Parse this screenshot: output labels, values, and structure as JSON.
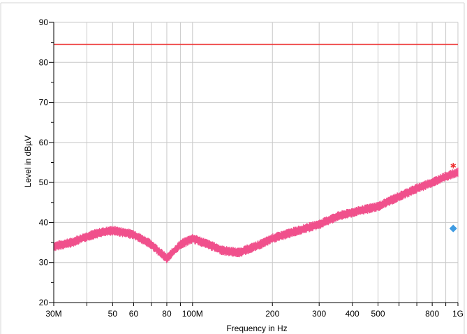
{
  "chart_data": {
    "type": "line",
    "xlabel": "Frequency in Hz",
    "ylabel": "Level in dBµV",
    "x_scale": "log",
    "xlim": [
      30000000,
      1000000000
    ],
    "ylim": [
      20,
      90
    ],
    "x_ticks": [
      {
        "value": 30000000,
        "label": "30M"
      },
      {
        "value": 50000000,
        "label": "50"
      },
      {
        "value": 60000000,
        "label": "60"
      },
      {
        "value": 80000000,
        "label": "80"
      },
      {
        "value": 100000000,
        "label": "100M"
      },
      {
        "value": 200000000,
        "label": "200"
      },
      {
        "value": 300000000,
        "label": "300"
      },
      {
        "value": 400000000,
        "label": "400"
      },
      {
        "value": 500000000,
        "label": "500"
      },
      {
        "value": 800000000,
        "label": "800"
      },
      {
        "value": 1000000000,
        "label": "1G"
      }
    ],
    "y_ticks": [
      20,
      30,
      40,
      50,
      60,
      70,
      80,
      90
    ],
    "grid": true,
    "series": [
      {
        "type": "line",
        "color": "#f0508c",
        "band_width_db": 2.5,
        "x": [
          30000000,
          35000000,
          40000000,
          45000000,
          50000000,
          55000000,
          60000000,
          70000000,
          80000000,
          90000000,
          100000000,
          110000000,
          130000000,
          150000000,
          180000000,
          200000000,
          250000000,
          300000000,
          350000000,
          400000000,
          500000000,
          600000000,
          700000000,
          800000000,
          900000000,
          1000000000
        ],
        "values": [
          34,
          35,
          36.5,
          37.5,
          38,
          37.5,
          37,
          34.5,
          31,
          34.5,
          36,
          35,
          33,
          32.5,
          34.5,
          36,
          38,
          39.5,
          41.5,
          42.5,
          44,
          46.5,
          48.5,
          50,
          51.5,
          52.5
        ]
      },
      {
        "type": "line",
        "color": "#ee3b3b",
        "x": [
          30000000,
          1000000000
        ],
        "values": [
          84.5,
          84.5
        ]
      }
    ],
    "markers": [
      {
        "symbol": "asterisk",
        "color": "#ee2b2b",
        "x": 960000000,
        "value": 54.2
      },
      {
        "symbol": "diamond",
        "color": "#3f9be2",
        "x": 960000000,
        "value": 38.5
      }
    ]
  }
}
